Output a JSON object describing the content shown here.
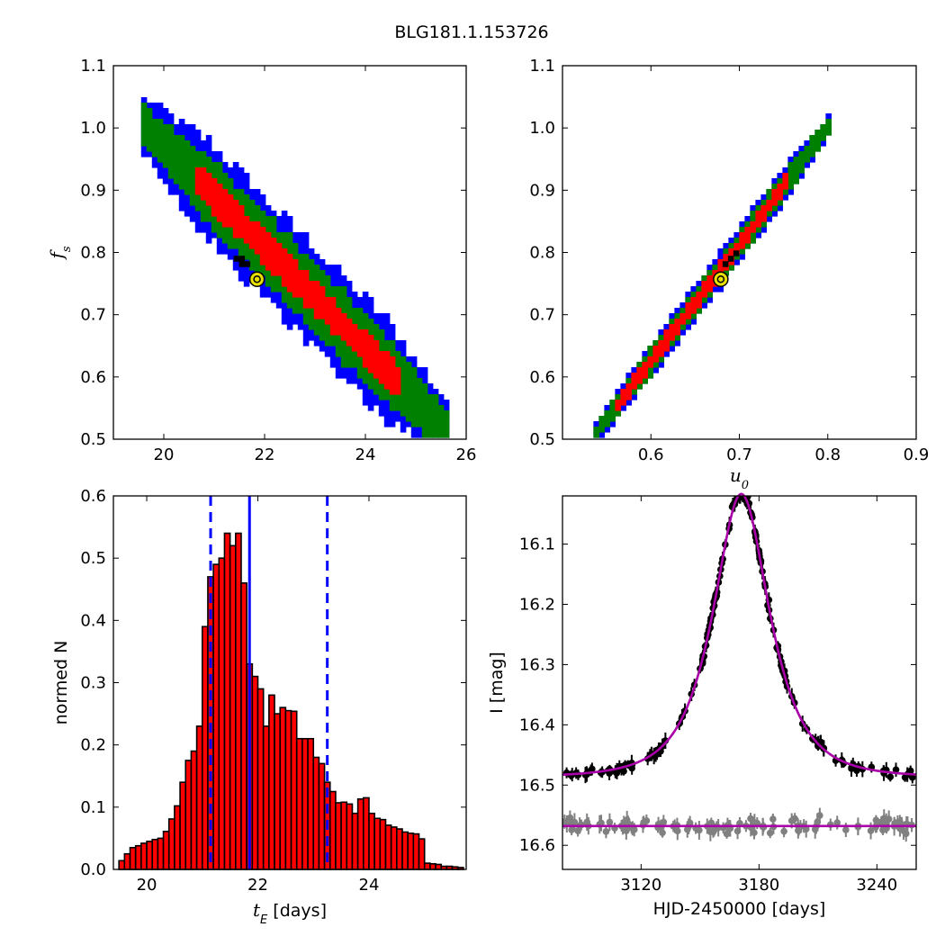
{
  "title": "BLG181.1.153726",
  "colors": {
    "blue": "#0000ff",
    "green": "#008000",
    "red": "#ff0000",
    "black": "#000000",
    "best_fit_marker": "#e8e000",
    "model_curve": "#aa00aa",
    "secondary_points": "#808080",
    "bar_fill": "#ff0000"
  },
  "chart_data": [
    {
      "id": "fs_vs_tE",
      "type": "heatmap",
      "xlabel": "",
      "ylabel": "f_s",
      "xlim": [
        19,
        26
      ],
      "ylim": [
        0.5,
        1.1
      ],
      "xticks": [
        20,
        22,
        24,
        26
      ],
      "yticks": [
        0.5,
        0.6,
        0.7,
        0.8,
        0.9,
        1.0,
        1.1
      ],
      "xtick_labels": [
        "20",
        "22",
        "24",
        "26"
      ],
      "ytick_labels": [
        "0.5",
        "0.6",
        "0.7",
        "0.8",
        "0.9",
        "1.0",
        "1.1"
      ],
      "ridge": {
        "x": [
          19.55,
          25.6
        ],
        "y": [
          1.005,
          0.51
        ]
      },
      "contour_halfwidths": {
        "blue": 0.075,
        "green": 0.05,
        "red": 0.022
      },
      "red_range": {
        "x": [
          20.6,
          24.6
        ]
      },
      "best_fit": {
        "x": 21.85,
        "y": 0.757
      }
    },
    {
      "id": "fs_vs_u0",
      "type": "heatmap",
      "xlabel": "u_0",
      "ylabel": "",
      "xlim": [
        0.5,
        0.9
      ],
      "ylim": [
        0.5,
        1.1
      ],
      "xticks": [
        0.6,
        0.7,
        0.8,
        0.9
      ],
      "yticks": [
        0.5,
        0.6,
        0.7,
        0.8,
        0.9,
        1.0,
        1.1
      ],
      "xtick_labels": [
        "0.6",
        "0.7",
        "0.8",
        "0.9"
      ],
      "ytick_labels": [
        "0.5",
        "0.6",
        "0.7",
        "0.8",
        "0.9",
        "1.0",
        "1.1"
      ],
      "ridge": {
        "x": [
          0.535,
          0.8
        ],
        "y": [
          0.51,
          1.007
        ]
      },
      "contour_halfwidths": {
        "blue": 0.024,
        "green": 0.016,
        "red": 0.008
      },
      "red_range": {
        "x": [
          0.555,
          0.75
        ]
      },
      "best_fit": {
        "x": 0.679,
        "y": 0.757
      }
    },
    {
      "id": "tE_histogram",
      "type": "bar",
      "xlabel": "t_E [days]",
      "ylabel": "normed N",
      "xlim": [
        19.4,
        25.75
      ],
      "ylim": [
        0,
        0.6
      ],
      "xticks": [
        20,
        22,
        24
      ],
      "yticks": [
        0.0,
        0.1,
        0.2,
        0.3,
        0.4,
        0.5,
        0.6
      ],
      "xtick_labels": [
        "20",
        "22",
        "24"
      ],
      "ytick_labels": [
        "0.0",
        "0.1",
        "0.2",
        "0.3",
        "0.4",
        "0.5",
        "0.6"
      ],
      "bin_start": 19.5,
      "bin_width": 0.1,
      "values": [
        0.014,
        0.025,
        0.035,
        0.038,
        0.042,
        0.045,
        0.048,
        0.05,
        0.061,
        0.081,
        0.102,
        0.14,
        0.175,
        0.19,
        0.23,
        0.39,
        0.47,
        0.49,
        0.5,
        0.54,
        0.52,
        0.54,
        0.46,
        0.33,
        0.31,
        0.29,
        0.23,
        0.28,
        0.25,
        0.26,
        0.255,
        0.254,
        0.21,
        0.21,
        0.21,
        0.18,
        0.17,
        0.14,
        0.125,
        0.107,
        0.108,
        0.105,
        0.09,
        0.113,
        0.115,
        0.09,
        0.082,
        0.08,
        0.071,
        0.068,
        0.065,
        0.06,
        0.058,
        0.057,
        0.049,
        0.01,
        0.009,
        0.008,
        0.005,
        0.005,
        0.004,
        0.003
      ],
      "vlines": [
        {
          "x": 21.85,
          "style": "solid"
        },
        {
          "x": 21.15,
          "style": "dashed"
        },
        {
          "x": 23.25,
          "style": "dashed"
        }
      ]
    },
    {
      "id": "lightcurve",
      "type": "scatter",
      "xlabel": "HJD-2450000 [days]",
      "ylabel": "I [mag]",
      "xlim": [
        3080,
        3260
      ],
      "ylim": [
        16.64,
        16.02
      ],
      "xticks": [
        3120,
        3180,
        3240
      ],
      "yticks": [
        16.1,
        16.2,
        16.3,
        16.4,
        16.5,
        16.6
      ],
      "xtick_labels": [
        "3120",
        "3180",
        "3240"
      ],
      "ytick_labels": [
        "16.1",
        "16.2",
        "16.3",
        "16.4",
        "16.5",
        "16.6"
      ],
      "model": {
        "t0": 3171,
        "u0": 0.679,
        "tE": 21.85,
        "fs": 0.757,
        "baseline": 16.487
      },
      "flat_line": 16.568,
      "n_points": 170,
      "n_secondary": 110,
      "secondary_mean": 16.568,
      "x_span": [
        3080,
        3259
      ]
    }
  ]
}
